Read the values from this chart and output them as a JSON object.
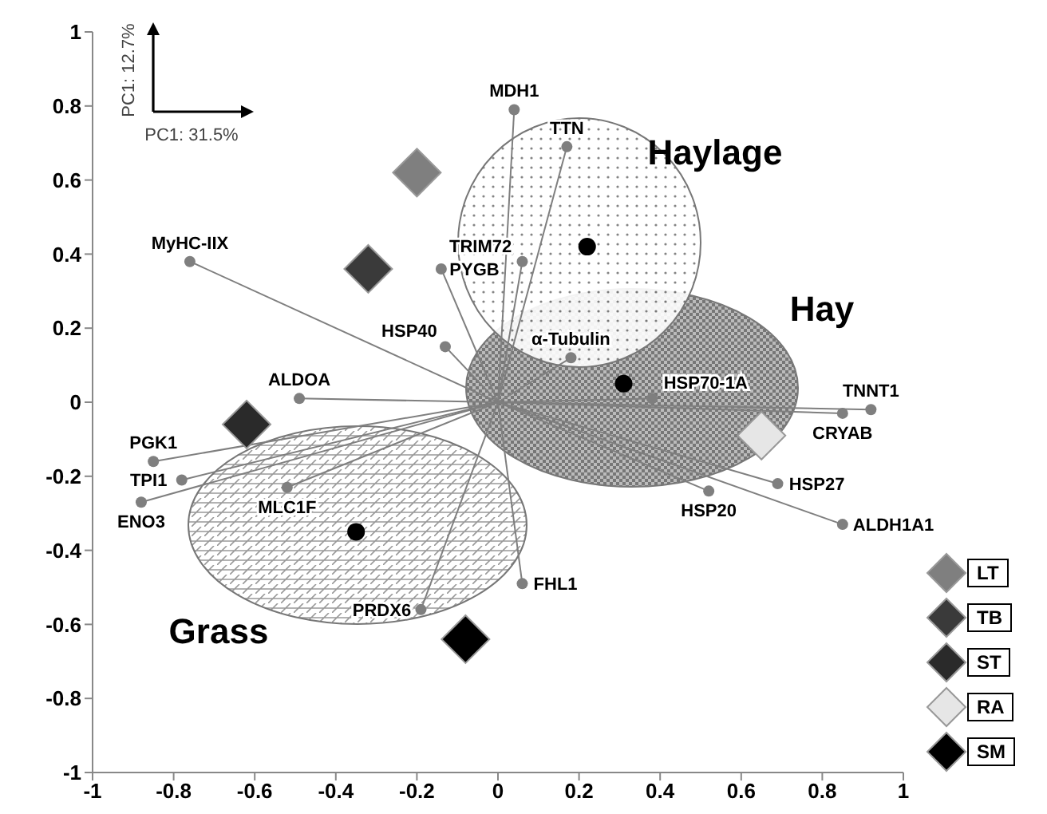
{
  "chart_data": {
    "type": "scatter",
    "xlim": [
      -1,
      1
    ],
    "ylim": [
      -1,
      1
    ],
    "xticks": [
      -1,
      -0.8,
      -0.6,
      -0.4,
      -0.2,
      0,
      0.2,
      0.4,
      0.6,
      0.8,
      1
    ],
    "yticks": [
      -1,
      -0.8,
      -0.6,
      -0.4,
      -0.2,
      0,
      0.2,
      0.4,
      0.6,
      0.8,
      1
    ],
    "legend": "right",
    "annotations": [
      "PC1: 12.7%",
      "PC1: 31.5%",
      "Haylage",
      "Hay",
      "Grass",
      {
        "text": "MDH1",
        "x": 0.04,
        "y": 0.79
      },
      {
        "text": "TTN",
        "x": 0.17,
        "y": 0.69
      },
      {
        "text": "TRIM72",
        "x": 0.06,
        "y": 0.38
      },
      {
        "text": "PYGB",
        "x": -0.14,
        "y": 0.36
      },
      {
        "text": "HSP40",
        "x": -0.13,
        "y": 0.15
      },
      {
        "text": "MyHC-IIX",
        "x": -0.76,
        "y": 0.38
      },
      {
        "text": "ALDOA",
        "x": -0.49,
        "y": 0.01
      },
      {
        "text": "α-Tubulin",
        "x": 0.18,
        "y": 0.12
      },
      {
        "text": "HSP70-1A",
        "x": 0.38,
        "y": 0.01
      },
      {
        "text": "TNNT1",
        "x": 0.92,
        "y": -0.02
      },
      {
        "text": "CRYAB",
        "x": 0.85,
        "y": -0.03
      },
      {
        "text": "HSP27",
        "x": 0.69,
        "y": -0.22
      },
      {
        "text": "HSP20",
        "x": 0.52,
        "y": -0.24
      },
      {
        "text": "ALDH1A1",
        "x": 0.85,
        "y": -0.33
      },
      {
        "text": "PGK1",
        "x": -0.85,
        "y": -0.16
      },
      {
        "text": "TPI1",
        "x": -0.78,
        "y": -0.21
      },
      {
        "text": "ENO3",
        "x": -0.88,
        "y": -0.27
      },
      {
        "text": "MLC1F",
        "x": -0.52,
        "y": -0.23
      },
      {
        "text": "PRDX6",
        "x": -0.19,
        "y": -0.56
      },
      {
        "text": "FHL1",
        "x": 0.06,
        "y": -0.49
      }
    ],
    "series": [
      {
        "type": "lollipop",
        "marker": "circle",
        "color": "#7f7f7f",
        "x": [
          0.04,
          0.17,
          0.06,
          -0.14,
          -0.13,
          -0.76,
          -0.49,
          0.18,
          0.38,
          0.92,
          0.85,
          0.69,
          0.52,
          0.85,
          -0.85,
          -0.78,
          -0.88,
          -0.52,
          -0.19,
          0.06
        ],
        "values": [
          0.79,
          0.69,
          0.38,
          0.36,
          0.15,
          0.38,
          0.01,
          0.12,
          0.01,
          -0.02,
          -0.03,
          -0.22,
          -0.24,
          -0.33,
          -0.16,
          -0.21,
          -0.27,
          -0.23,
          -0.56,
          -0.49
        ]
      },
      {
        "type": "scatter",
        "marker": "circle",
        "color": "#000000",
        "x": [
          0.22,
          0.31,
          -0.35
        ],
        "values": [
          0.42,
          0.05,
          -0.35
        ]
      },
      {
        "type": "scatter",
        "marker": "diamond",
        "name": "LT",
        "color": "#7f7f7f",
        "x": [
          -0.2
        ],
        "values": [
          0.62
        ]
      },
      {
        "type": "scatter",
        "marker": "diamond",
        "name": "TB",
        "color": "#3a3a3a",
        "x": [
          -0.32
        ],
        "values": [
          0.36
        ]
      },
      {
        "type": "scatter",
        "marker": "diamond",
        "name": "ST",
        "color": "#2a2a2a",
        "x": [
          -0.62
        ],
        "values": [
          -0.06
        ]
      },
      {
        "type": "scatter",
        "marker": "diamond",
        "name": "RA",
        "color": "#e6e6e6",
        "x": [
          0.65
        ],
        "values": [
          -0.09
        ]
      },
      {
        "type": "scatter",
        "marker": "diamond",
        "name": "SM",
        "color": "#000000",
        "x": [
          -0.08
        ],
        "values": [
          -0.64
        ]
      }
    ]
  }
}
